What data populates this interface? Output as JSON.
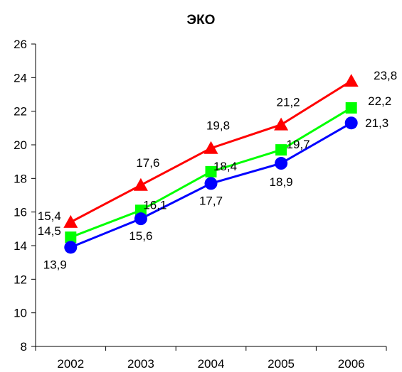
{
  "chart_data": {
    "type": "line",
    "title": "ЭКО",
    "xlabel": "",
    "ylabel": "",
    "categories": [
      "2002",
      "2003",
      "2004",
      "2005",
      "2006"
    ],
    "ylim": [
      8,
      26
    ],
    "yticks": [
      "8",
      "10",
      "12",
      "14",
      "16",
      "18",
      "20",
      "22",
      "24",
      "26"
    ],
    "grid": false,
    "legend": "none",
    "series": [
      {
        "color": "#ff0000",
        "marker": "triangle",
        "values": [
          15.4,
          17.6,
          19.8,
          21.2,
          23.8
        ],
        "labels": [
          "15,4",
          "17,6",
          "19,8",
          "21,2",
          "23,8"
        ]
      },
      {
        "color": "#00ff00",
        "marker": "square",
        "values": [
          14.5,
          16.1,
          18.4,
          19.7,
          22.2
        ],
        "labels": [
          "14,5",
          "16,1",
          "18,4",
          "19,7",
          "22,2"
        ]
      },
      {
        "color": "#0000ff",
        "marker": "circle",
        "values": [
          13.9,
          15.6,
          17.7,
          18.9,
          21.3
        ],
        "labels": [
          "13,9",
          "15,6",
          "17,7",
          "18,9",
          "21,3"
        ]
      }
    ]
  }
}
